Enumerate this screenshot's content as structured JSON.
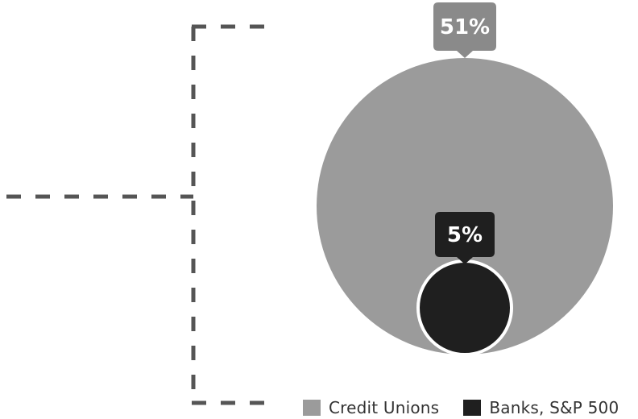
{
  "chart_data": {
    "type": "bubble",
    "title": "",
    "series": [
      {
        "name": "Credit Unions",
        "value": 51,
        "label": "51%",
        "color": "#9b9b9b"
      },
      {
        "name": "Banks, S&P 500",
        "value": 5,
        "label": "5%",
        "color": "#1f1f1f"
      }
    ],
    "legend": "bottom-right",
    "grid": false
  },
  "colors": {
    "frame": "#555555",
    "callout_credit_unions": "#8a8a8a",
    "callout_banks": "#1f1f1f",
    "banks_outline": "#ffffff"
  }
}
